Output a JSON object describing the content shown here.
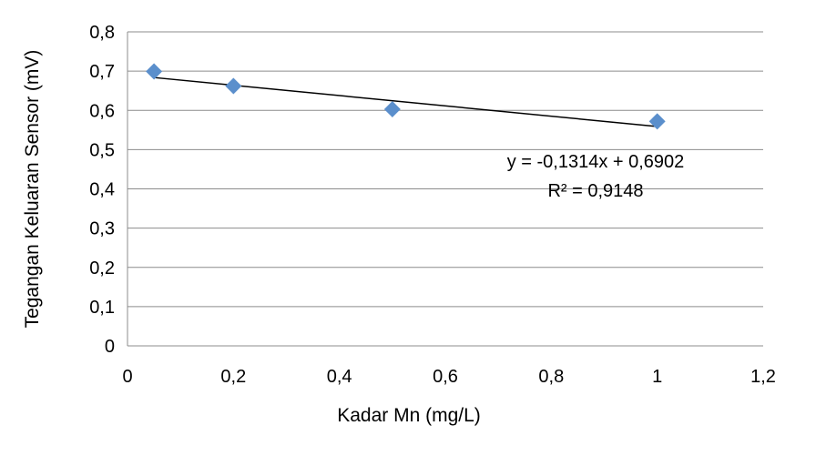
{
  "chart_data": {
    "type": "scatter",
    "xlabel": "Kadar Mn (mg/L)",
    "ylabel": "Tegangan Keluaran Sensor (mV)",
    "xlim": [
      0,
      1.2
    ],
    "ylim": [
      0,
      0.8
    ],
    "x_ticks": [
      "0",
      "0,2",
      "0,4",
      "0,6",
      "0,8",
      "1",
      "1,2"
    ],
    "y_ticks": [
      "0",
      "0,1",
      "0,2",
      "0,3",
      "0,4",
      "0,5",
      "0,6",
      "0,7",
      "0,8"
    ],
    "grid": "horizontal",
    "marker": "diamond",
    "series": [
      {
        "x": [
          0.05,
          0.2,
          0.5,
          1.0
        ],
        "y": [
          0.699,
          0.662,
          0.603,
          0.572
        ],
        "color": "#5b8fcc"
      }
    ],
    "trendline": {
      "type": "linear",
      "slope": -0.1314,
      "intercept": 0.6902,
      "x_range": [
        0.05,
        1.0
      ],
      "color": "#000000",
      "equation": "y = -0,1314x + 0,6902",
      "r_squared": "R² = 0,9148"
    }
  }
}
